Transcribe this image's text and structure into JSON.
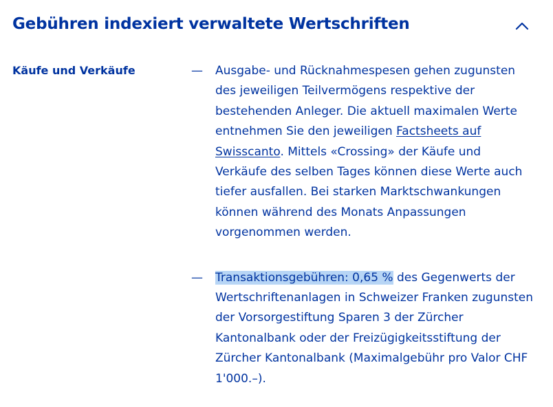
{
  "section": {
    "title": "Gebühren indexiert verwaltete Wertschriften",
    "toggle_icon": "chevron-up-icon",
    "expanded": true
  },
  "colors": {
    "text": "#0033a0",
    "selection_highlight": "#b7d5f5",
    "background": "#ffffff"
  },
  "row": {
    "label": "Käufe und Verkäufe",
    "items": [
      {
        "dash": "—",
        "text_before_link": "Ausgabe- und Rücknahmespesen gehen zugunsten des jeweiligen Teilvermögens respektive der bestehenden Anleger. Die aktuell maximalen Werte entnehmen Sie den jeweiligen ",
        "link_text": "Factsheets auf Swisscanto",
        "text_after_link": ". Mittels «Crossing» der Käufe und Verkäufe des selben Tages können diese Werte auch tiefer ausfallen. Bei starken Marktschwankungen können während des Monats Anpassungen vorgenommen werden."
      },
      {
        "dash": "—",
        "highlighted_text": "Transaktionsgebühren: 0,65 %",
        "text_after_highlight": " des Gegenwerts der Wertschriftenanlagen in Schweizer Franken zugunsten der Vorsorgestiftung Sparen 3 der Zürcher Kantonalbank oder der Freizügigkeitsstiftung der Zürcher Kantonalbank (Maximalgebühr pro Valor CHF 1'000.–)."
      }
    ]
  }
}
